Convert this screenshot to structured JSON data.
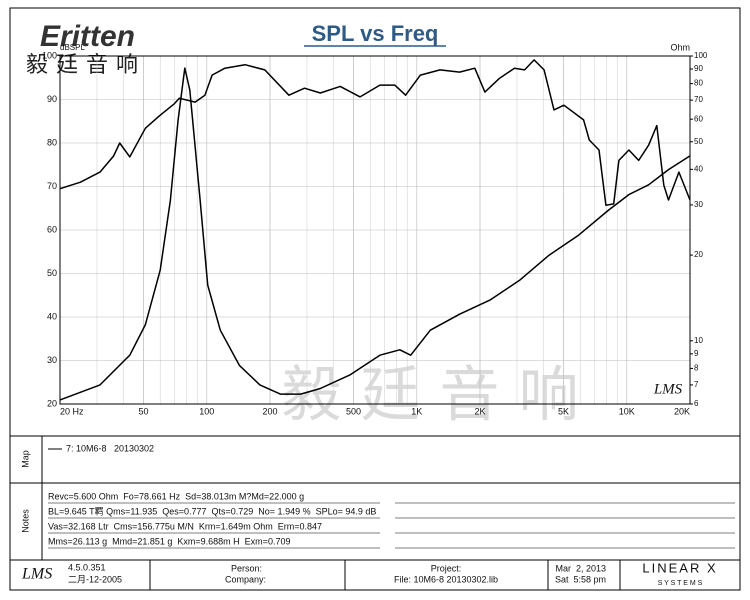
{
  "header": {
    "logo": "Eritten",
    "logo_cn": "毅廷音响"
  },
  "chart_data": {
    "type": "line",
    "title": "SPL vs Freq",
    "y_label": "dBSPL",
    "y2_label": "Ohm",
    "watermark": "毅 廷 音 响",
    "mark": "LMS",
    "xlog": true,
    "y2log": true,
    "grid": true,
    "xlim": [
      20,
      20000
    ],
    "xticks": [
      {
        "value": 20,
        "label": "20 Hz"
      },
      50,
      100,
      200,
      500,
      {
        "value": 1000,
        "label": "1K"
      },
      {
        "value": 2000,
        "label": "2K"
      },
      {
        "value": 5000,
        "label": "5K"
      },
      {
        "value": 10000,
        "label": "10K"
      },
      {
        "value": 20000,
        "label": "20K"
      }
    ],
    "ylim": [
      20,
      100
    ],
    "yticks": [
      20,
      30,
      40,
      50,
      60,
      70,
      80,
      90,
      100
    ],
    "y2lim": [
      6,
      100
    ],
    "y2ticks": [
      6,
      7,
      8,
      9,
      10,
      20,
      30,
      40,
      50,
      60,
      70,
      80,
      90,
      100
    ],
    "series": [
      {
        "color": "#000000",
        "x": [
          20,
          25,
          31,
          36,
          38.5,
          43,
          51,
          60,
          70,
          74,
          88,
          98,
          106,
          122,
          152,
          189,
          246,
          292,
          347,
          432,
          537,
          667,
          786,
          885,
          1040,
          1290,
          1600,
          1890,
          2110,
          2480,
          2920,
          3260,
          3620,
          4040,
          4500,
          5020,
          6230,
          6630,
          7370,
          7950,
          8660,
          9170,
          10230,
          11400,
          12700,
          13900,
          15000,
          15800,
          17700,
          20000
        ],
        "values": [
          69.5,
          71,
          73.3,
          77,
          80,
          76.8,
          83.4,
          86.4,
          89,
          90.3,
          89.4,
          91,
          95.6,
          97.2,
          98,
          96.8,
          91,
          92.6,
          91.5,
          93,
          90.6,
          93.3,
          93.3,
          91,
          95.6,
          96.8,
          96.3,
          97.2,
          91.7,
          94.9,
          97.2,
          96.8,
          99.1,
          96.8,
          87.6,
          88.7,
          85.3,
          80.7,
          78.4,
          65.7,
          66,
          76,
          78.4,
          76,
          79.5,
          84,
          70.3,
          66.9,
          73.3,
          66.9
        ]
      },
      {
        "color": "#000000",
        "axis": "y2",
        "x": [
          20,
          31,
          43,
          51,
          60,
          67,
          73,
          78.6,
          83,
          93,
          101,
          116,
          143,
          179,
          224,
          280,
          347,
          482,
          667,
          830,
          935,
          1160,
          1600,
          2230,
          3080,
          4270,
          5900,
          8200,
          10230,
          12700,
          15800,
          20000
        ],
        "values": [
          6.2,
          7,
          8.9,
          11.4,
          17.7,
          31,
          59.6,
          90.7,
          76,
          31,
          15.7,
          10.9,
          8.2,
          7,
          6.5,
          6.5,
          6.8,
          7.6,
          8.9,
          9.3,
          8.9,
          10.9,
          12.4,
          13.9,
          16.3,
          20,
          23.5,
          28.8,
          32.6,
          35.3,
          39.9,
          44.6
        ]
      }
    ]
  },
  "map": {
    "label": "Map",
    "entry": "7: 10M6-8   20130302"
  },
  "notes": {
    "label": "Notes",
    "lines": [
      "Revc=5.600 Ohm  Fo=78.661 Hz  Sd=38.013m M?Md=22.000 g",
      "BL=9.645 T羁 Qms=11.935  Qes=0.777  Qts=0.729  No= 1.949 %  SPLo= 94.9 dB",
      "Vas=32.168 Ltr  Cms=156.775u M/N  Krm=1.649m Ohm  Erm=0.847",
      "Mms=26.113 g  Mmd=21.851 g  Kxm=9.688m H  Exm=0.709"
    ]
  },
  "footer": {
    "logo": "LMS",
    "version": "4.5.0.351",
    "date": "二月-12-2005",
    "person": "Person:",
    "company": "Company:",
    "project": "Project:",
    "file": "File: 10M6-8 20130302.lib",
    "run_date": "Mar  2, 2013",
    "run_time": "Sat  5:58 pm",
    "brand": "LINEAR X",
    "brand_sub": "S Y S T E M S"
  }
}
